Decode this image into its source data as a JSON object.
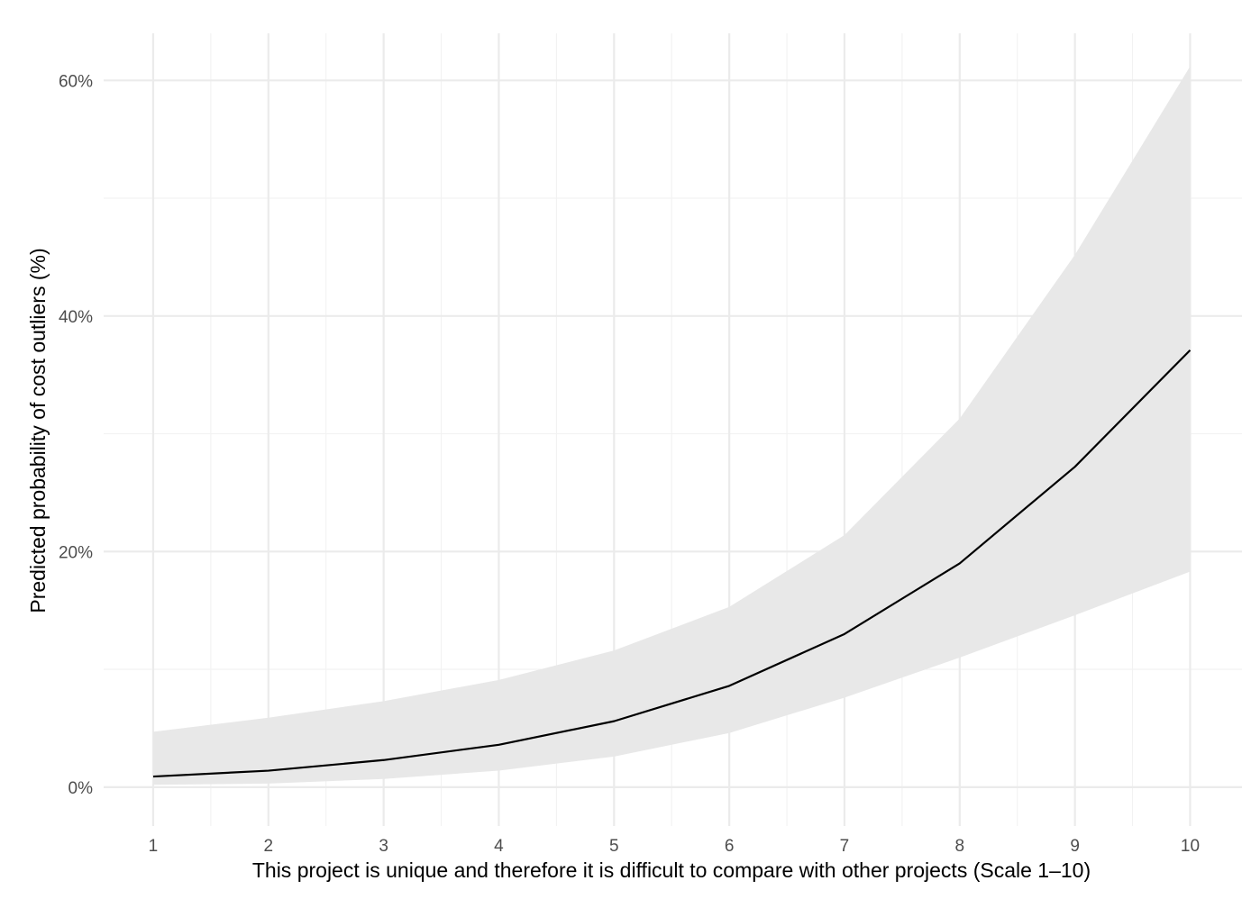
{
  "chart_data": {
    "type": "line",
    "title": "",
    "xlabel": "This project is unique and therefore it is difficult to compare with other projects (Scale 1–10)",
    "ylabel": "Predicted probability of cost outliers (%)",
    "xlim": [
      0.57,
      10.45
    ],
    "ylim": [
      -0.033,
      0.64
    ],
    "x_ticks": [
      1,
      2,
      3,
      4,
      5,
      6,
      7,
      8,
      9,
      10
    ],
    "x_tick_labels": [
      "1",
      "2",
      "3",
      "4",
      "5",
      "6",
      "7",
      "8",
      "9",
      "10"
    ],
    "y_ticks": [
      0,
      0.2,
      0.4,
      0.6
    ],
    "y_tick_labels": [
      "0%",
      "20%",
      "40%",
      "60%"
    ],
    "y_minor_ticks": [
      0.1,
      0.3,
      0.5
    ],
    "x_minor_ticks": [
      1.5,
      2.5,
      3.5,
      4.5,
      5.5,
      6.5,
      7.5,
      8.5,
      9.5
    ],
    "grid": true,
    "legend": "none",
    "colors": {
      "line": "#000000",
      "ribbon": "#e8e8e8",
      "grid_major": "#ebebeb",
      "grid_minor": "#f2f2f2",
      "tick_text": "#4d4d4d"
    },
    "series": [
      {
        "x": [
          1,
          2,
          3,
          4,
          5,
          6,
          7,
          8,
          9,
          10
        ],
        "values": [
          0.009,
          0.014,
          0.023,
          0.036,
          0.056,
          0.086,
          0.13,
          0.19,
          0.272,
          0.371
        ],
        "lower": [
          0.002,
          0.003,
          0.007,
          0.014,
          0.026,
          0.046,
          0.076,
          0.11,
          0.146,
          0.183
        ],
        "upper": [
          0.047,
          0.059,
          0.073,
          0.091,
          0.116,
          0.153,
          0.214,
          0.313,
          0.452,
          0.612
        ]
      }
    ]
  }
}
